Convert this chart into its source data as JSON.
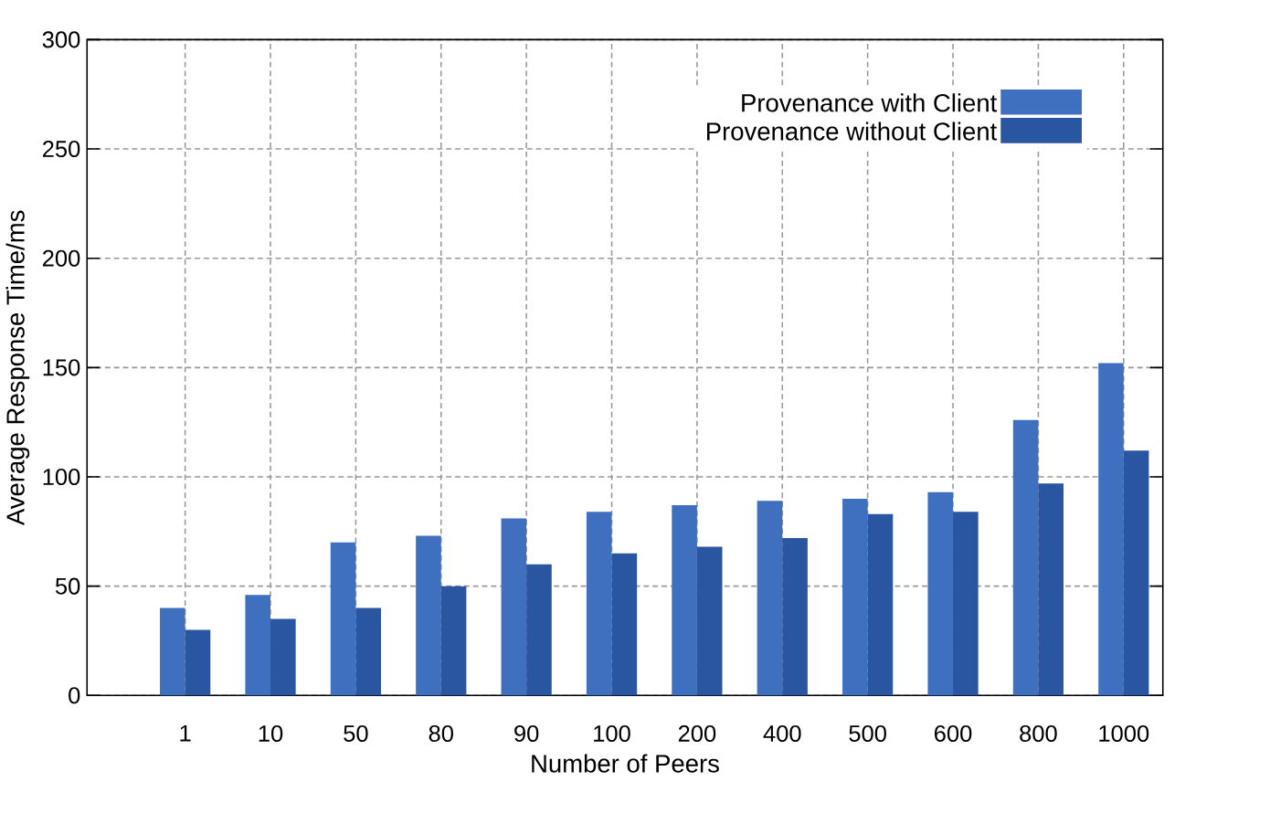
{
  "chart_data": {
    "type": "bar",
    "xlabel": "Number of Peers",
    "ylabel": "Average Response Time/ms",
    "categories": [
      "1",
      "10",
      "50",
      "80",
      "90",
      "100",
      "200",
      "400",
      "500",
      "600",
      "800",
      "1000"
    ],
    "series": [
      {
        "name": "Provenance with Client",
        "color": "#3f6fbf",
        "values": [
          40,
          46,
          70,
          73,
          81,
          84,
          87,
          89,
          90,
          93,
          126,
          152
        ]
      },
      {
        "name": "Provenance without Client",
        "color": "#2a55a0",
        "values": [
          30,
          35,
          40,
          50,
          60,
          65,
          68,
          72,
          83,
          84,
          97,
          112
        ]
      }
    ],
    "ylim": [
      0,
      300
    ],
    "yticks": [
      0,
      50,
      100,
      150,
      200,
      250,
      300
    ],
    "grid": true,
    "legend": "top right"
  }
}
